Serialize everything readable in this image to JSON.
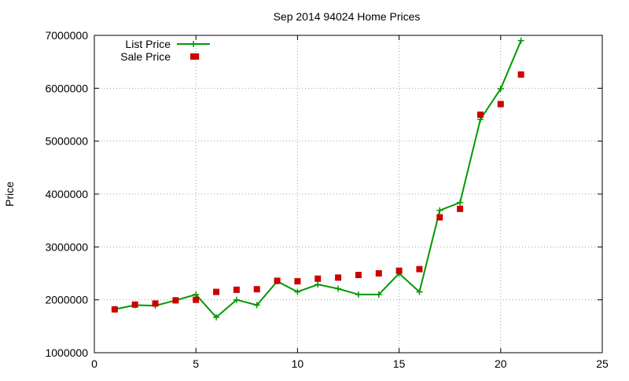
{
  "chart_data": {
    "type": "line",
    "title": "Sep 2014 94024 Home Prices",
    "xlabel": "",
    "ylabel": "Price",
    "xlim": [
      0,
      25
    ],
    "ylim": [
      1000000,
      7000000
    ],
    "xticks": [
      0,
      5,
      10,
      15,
      20,
      25
    ],
    "yticks": [
      1000000,
      2000000,
      3000000,
      4000000,
      5000000,
      6000000,
      7000000
    ],
    "grid": true,
    "legend_position": "top-left",
    "series": [
      {
        "name": "List Price",
        "style": "line-with-plus-markers",
        "color": "#009900",
        "x": [
          1,
          2,
          3,
          4,
          5,
          6,
          7,
          8,
          9,
          10,
          11,
          12,
          13,
          14,
          15,
          16,
          17,
          18,
          19,
          20,
          21
        ],
        "values": [
          1820000,
          1900000,
          1890000,
          1990000,
          2100000,
          1670000,
          2000000,
          1900000,
          2350000,
          2150000,
          2290000,
          2210000,
          2100000,
          2100000,
          2500000,
          2150000,
          3690000,
          3840000,
          5410000,
          5990000,
          6900000
        ]
      },
      {
        "name": "Sale Price",
        "style": "square-markers",
        "color": "#cc0000",
        "x": [
          1,
          2,
          3,
          4,
          5,
          5,
          6,
          7,
          8,
          9,
          10,
          11,
          12,
          13,
          14,
          15,
          16,
          17,
          18,
          19,
          20,
          21
        ],
        "values": [
          1820000,
          1910000,
          1930000,
          1990000,
          2000000,
          6600000,
          2150000,
          2190000,
          2200000,
          2360000,
          2350000,
          2400000,
          2420000,
          2470000,
          2500000,
          2550000,
          2580000,
          3560000,
          3720000,
          5500000,
          5700000,
          6260000
        ]
      }
    ]
  }
}
